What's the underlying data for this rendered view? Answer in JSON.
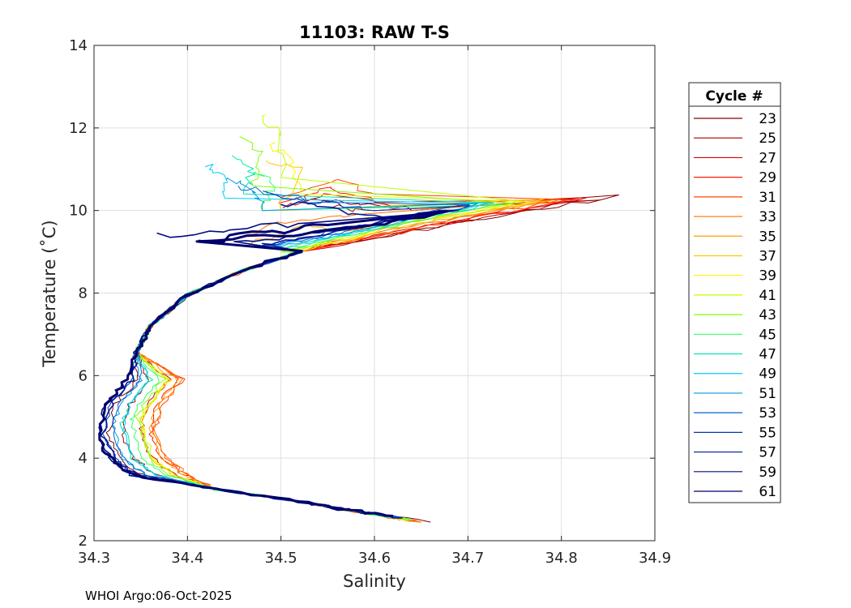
{
  "chart_data": {
    "type": "line",
    "title": "11103: RAW T-S",
    "xlabel": "Salinity",
    "ylabel": "Temperature (˚C)",
    "xlim": [
      34.3,
      34.9
    ],
    "ylim": [
      2,
      14
    ],
    "xticks": [
      34.3,
      34.4,
      34.5,
      34.6,
      34.7,
      34.8,
      34.9
    ],
    "xtick_labels": [
      "34.3",
      "34.4",
      "34.5",
      "34.6",
      "34.7",
      "34.8",
      "34.9"
    ],
    "yticks": [
      2,
      4,
      6,
      8,
      10,
      12,
      14
    ],
    "ytick_labels": [
      "2",
      "4",
      "6",
      "8",
      "10",
      "12",
      "14"
    ],
    "grid": true,
    "legend": {
      "title": "Cycle #",
      "placement": "outside-right"
    },
    "series": [
      {
        "name": "23",
        "color": "#800000",
        "profile": {
          "top": [
            [
              34.52,
              10.3
            ],
            [
              34.58,
              10.2
            ],
            [
              34.64,
              10.0
            ]
          ],
          "mixed": [
            [
              34.86,
              10.35
            ],
            [
              34.78,
              10.05
            ],
            [
              34.7,
              9.75
            ],
            [
              34.62,
              9.4
            ],
            [
              34.53,
              9.05
            ]
          ],
          "min": [
            34.315,
            4.6
          ],
          "bottom": [
            34.66,
            2.45
          ]
        }
      },
      {
        "name": "25",
        "color": "#aa0000",
        "profile": {
          "top": [
            [
              34.55,
              10.1
            ],
            [
              34.6,
              10.0
            ]
          ],
          "mixed": [
            [
              34.84,
              10.3
            ],
            [
              34.76,
              10.0
            ],
            [
              34.69,
              9.7
            ],
            [
              34.61,
              9.35
            ],
            [
              34.52,
              9.0
            ]
          ],
          "min": [
            34.33,
            4.55
          ],
          "bottom": [
            34.65,
            2.45
          ]
        }
      },
      {
        "name": "27",
        "color": "#d40000",
        "profile": {
          "top": [
            [
              34.5,
              10.1
            ],
            [
              34.56,
              10.4
            ],
            [
              34.62,
              10.1
            ]
          ],
          "mixed": [
            [
              34.83,
              10.28
            ],
            [
              34.75,
              9.98
            ],
            [
              34.68,
              9.7
            ],
            [
              34.6,
              9.35
            ],
            [
              34.52,
              9.0
            ]
          ],
          "min": [
            34.35,
            4.6
          ],
          "bottom": [
            34.65,
            2.45
          ]
        }
      },
      {
        "name": "29",
        "color": "#ff1a00",
        "profile": {
          "top": [
            [
              34.5,
              10.2
            ],
            [
              34.55,
              10.6
            ],
            [
              34.6,
              10.2
            ]
          ],
          "mixed": [
            [
              34.82,
              10.27
            ],
            [
              34.74,
              9.97
            ],
            [
              34.67,
              9.68
            ],
            [
              34.6,
              9.33
            ],
            [
              34.52,
              9.0
            ]
          ],
          "min": [
            34.36,
            4.6
          ],
          "bottom": [
            34.65,
            2.45
          ]
        }
      },
      {
        "name": "31",
        "color": "#ff4500",
        "profile": {
          "top": [
            [
              34.5,
              10.3
            ],
            [
              34.56,
              10.8
            ],
            [
              34.6,
              10.4
            ]
          ],
          "mixed": [
            [
              34.81,
              10.26
            ],
            [
              34.73,
              9.96
            ],
            [
              34.66,
              9.67
            ],
            [
              34.59,
              9.33
            ],
            [
              34.51,
              9.0
            ]
          ],
          "min": [
            34.365,
            4.65
          ],
          "bottom": [
            34.65,
            2.45
          ]
        }
      },
      {
        "name": "33",
        "color": "#ff7000",
        "profile": {
          "top": [
            [
              34.46,
              9.4
            ],
            [
              34.52,
              9.8
            ],
            [
              34.58,
              9.9
            ]
          ],
          "mixed": [
            [
              34.8,
              10.25
            ],
            [
              34.72,
              9.95
            ],
            [
              34.65,
              9.66
            ],
            [
              34.58,
              9.32
            ],
            [
              34.51,
              9.0
            ]
          ],
          "min": [
            34.365,
            4.7
          ],
          "bottom": [
            34.65,
            2.45
          ]
        }
      },
      {
        "name": "35",
        "color": "#ff9c00",
        "profile": {
          "top": [
            [
              34.47,
              9.2
            ],
            [
              34.52,
              9.6
            ],
            [
              34.57,
              9.5
            ]
          ],
          "mixed": [
            [
              34.79,
              10.24
            ],
            [
              34.71,
              9.94
            ],
            [
              34.64,
              9.65
            ],
            [
              34.58,
              9.32
            ],
            [
              34.51,
              9.0
            ]
          ],
          "min": [
            34.36,
            4.75
          ],
          "bottom": [
            34.65,
            2.45
          ]
        }
      },
      {
        "name": "37",
        "color": "#ffc700",
        "profile": {
          "top": [
            [
              34.48,
              11.2
            ],
            [
              34.52,
              11.0
            ],
            [
              34.5,
              10.0
            ]
          ],
          "mixed": [
            [
              34.78,
              10.23
            ],
            [
              34.7,
              9.93
            ],
            [
              34.63,
              9.64
            ],
            [
              34.57,
              9.31
            ],
            [
              34.51,
              9.0
            ]
          ],
          "min": [
            34.35,
            4.85
          ],
          "bottom": [
            34.64,
            2.5
          ]
        }
      },
      {
        "name": "39",
        "color": "#fff200",
        "profile": {
          "top": [
            [
              34.49,
              11.6
            ],
            [
              34.51,
              11.2
            ],
            [
              34.52,
              10.4
            ]
          ],
          "mixed": [
            [
              34.77,
              10.22
            ],
            [
              34.69,
              9.92
            ],
            [
              34.62,
              9.63
            ],
            [
              34.57,
              9.31
            ],
            [
              34.51,
              9.0
            ]
          ],
          "min": [
            34.35,
            4.9
          ],
          "bottom": [
            34.64,
            2.5
          ]
        }
      },
      {
        "name": "41",
        "color": "#bfff00",
        "profile": {
          "top": [
            [
              34.48,
              12.3
            ],
            [
              34.5,
              11.8
            ],
            [
              34.5,
              10.8
            ]
          ],
          "mixed": [
            [
              34.76,
              10.21
            ],
            [
              34.69,
              9.91
            ],
            [
              34.62,
              9.62
            ],
            [
              34.56,
              9.3
            ],
            [
              34.5,
              9.0
            ]
          ],
          "min": [
            34.35,
            4.95
          ],
          "bottom": [
            34.64,
            2.5
          ]
        }
      },
      {
        "name": "43",
        "color": "#80ff00",
        "profile": {
          "top": [
            [
              34.46,
              11.8
            ],
            [
              34.48,
              11.3
            ],
            [
              34.47,
              10.6
            ]
          ],
          "mixed": [
            [
              34.75,
              10.2
            ],
            [
              34.68,
              9.9
            ],
            [
              34.61,
              9.61
            ],
            [
              34.56,
              9.3
            ],
            [
              34.5,
              9.0
            ]
          ],
          "min": [
            34.345,
            5.0
          ],
          "bottom": [
            34.64,
            2.5
          ]
        }
      },
      {
        "name": "45",
        "color": "#33ff66",
        "profile": {
          "top": [
            [
              34.47,
              11.0
            ],
            [
              34.49,
              10.6
            ],
            [
              34.48,
              10.0
            ]
          ],
          "mixed": [
            [
              34.74,
              10.19
            ],
            [
              34.67,
              9.89
            ],
            [
              34.61,
              9.6
            ],
            [
              34.55,
              9.3
            ],
            [
              34.5,
              9.05
            ]
          ],
          "min": [
            34.34,
            4.9
          ],
          "bottom": [
            34.64,
            2.5
          ]
        }
      },
      {
        "name": "47",
        "color": "#00e6b2",
        "profile": {
          "top": [
            [
              34.45,
              11.4
            ],
            [
              34.47,
              11.0
            ],
            [
              34.46,
              10.4
            ]
          ],
          "mixed": [
            [
              34.73,
              10.18
            ],
            [
              34.66,
              9.88
            ],
            [
              34.6,
              9.59
            ],
            [
              34.55,
              9.3
            ],
            [
              34.5,
              9.05
            ]
          ],
          "min": [
            34.33,
            4.85
          ],
          "bottom": [
            34.63,
            2.55
          ]
        }
      },
      {
        "name": "49",
        "color": "#00ccff",
        "profile": {
          "top": [
            [
              34.42,
              11.1
            ],
            [
              34.44,
              10.8
            ],
            [
              34.44,
              10.3
            ]
          ],
          "mixed": [
            [
              34.72,
              10.17
            ],
            [
              34.66,
              9.87
            ],
            [
              34.6,
              9.58
            ],
            [
              34.54,
              9.3
            ],
            [
              34.49,
              9.1
            ]
          ],
          "min": [
            34.33,
            4.8
          ],
          "bottom": [
            34.63,
            2.55
          ]
        }
      },
      {
        "name": "51",
        "color": "#0099e6",
        "profile": {
          "top": [
            [
              34.44,
              10.8
            ],
            [
              34.47,
              10.5
            ],
            [
              34.48,
              10.0
            ]
          ],
          "mixed": [
            [
              34.71,
              10.16
            ],
            [
              34.65,
              9.86
            ],
            [
              34.59,
              9.57
            ],
            [
              34.54,
              9.3
            ],
            [
              34.49,
              9.1
            ]
          ],
          "min": [
            34.32,
            4.75
          ],
          "bottom": [
            34.63,
            2.55
          ]
        }
      },
      {
        "name": "53",
        "color": "#0066cc",
        "profile": {
          "top": [
            [
              34.45,
              10.6
            ],
            [
              34.5,
              10.4
            ],
            [
              34.54,
              10.2
            ]
          ],
          "mixed": [
            [
              34.7,
              10.15
            ],
            [
              34.64,
              9.85
            ],
            [
              34.58,
              9.56
            ],
            [
              34.53,
              9.3
            ],
            [
              34.48,
              9.15
            ]
          ],
          "min": [
            34.32,
            4.7
          ],
          "bottom": [
            34.63,
            2.55
          ]
        }
      },
      {
        "name": "55",
        "color": "#0033b3",
        "profile": {
          "top": [
            [
              34.48,
              10.4
            ],
            [
              34.54,
              10.2
            ],
            [
              34.6,
              10.0
            ]
          ],
          "mixed": [
            [
              34.7,
              10.1
            ],
            [
              34.63,
              9.8
            ],
            [
              34.57,
              9.55
            ],
            [
              34.52,
              9.3
            ],
            [
              34.48,
              9.15
            ]
          ],
          "min": [
            34.31,
            4.6
          ],
          "bottom": [
            34.63,
            2.55
          ]
        }
      },
      {
        "name": "57",
        "color": "#001a99",
        "profile": {
          "top": [
            [
              34.5,
              10.2
            ],
            [
              34.56,
              10.0
            ],
            [
              34.62,
              9.8
            ]
          ],
          "mixed": [
            [
              34.69,
              10.05
            ],
            [
              34.62,
              9.78
            ],
            [
              34.57,
              9.55
            ],
            [
              34.52,
              9.3
            ],
            [
              34.48,
              9.2
            ]
          ],
          "min": [
            34.31,
            4.55
          ],
          "bottom": [
            34.63,
            2.55
          ]
        }
      },
      {
        "name": "59",
        "color": "#000d80",
        "profile": {
          "top": [
            [
              34.37,
              9.4
            ],
            [
              34.45,
              9.55
            ],
            [
              34.53,
              9.7
            ]
          ],
          "mixed": [
            [
              34.68,
              10.0
            ],
            [
              34.62,
              9.75
            ],
            [
              34.56,
              9.55
            ],
            [
              34.51,
              9.35
            ],
            [
              34.45,
              9.25
            ]
          ],
          "min": [
            34.305,
            4.5
          ],
          "bottom": [
            34.62,
            2.6
          ]
        }
      },
      {
        "name": "61",
        "color": "#00006e",
        "profile": {
          "top": [
            [
              34.41,
              9.25
            ],
            [
              34.48,
              9.45
            ],
            [
              34.55,
              9.65
            ]
          ],
          "mixed": [
            [
              34.68,
              9.95
            ],
            [
              34.61,
              9.7
            ],
            [
              34.56,
              9.55
            ],
            [
              34.5,
              9.4
            ],
            [
              34.41,
              9.25
            ]
          ],
          "min": [
            34.305,
            4.45
          ],
          "bottom": [
            34.62,
            2.6
          ]
        }
      }
    ]
  },
  "footer": "WHOI Argo:06-Oct-2025"
}
